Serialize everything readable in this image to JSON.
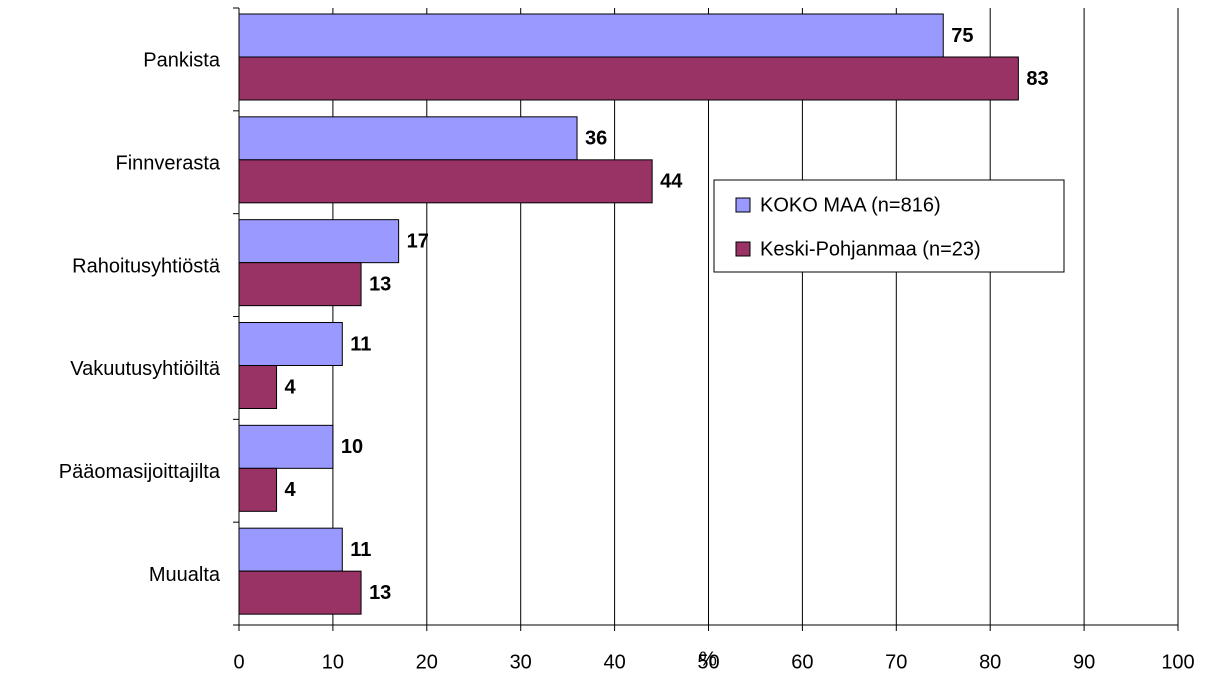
{
  "chart_data": {
    "type": "bar",
    "orientation": "horizontal",
    "categories": [
      "Pankista",
      "Finnverasta",
      "Rahoitusyhtiöstä",
      "Vakuutusyhtiöiltä",
      "Pääomasijoittajilta",
      "Muualta"
    ],
    "series": [
      {
        "name": "KOKO MAA (n=816)",
        "color": "#9999ff",
        "values": [
          75,
          36,
          17,
          11,
          10,
          11
        ]
      },
      {
        "name": "Keski-Pohjanmaa (n=23)",
        "color": "#993366",
        "values": [
          83,
          44,
          13,
          4,
          4,
          13
        ]
      }
    ],
    "x_label": "%",
    "xlim": [
      0,
      100
    ],
    "xticks": [
      0,
      10,
      20,
      30,
      40,
      50,
      60,
      70,
      80,
      90,
      100
    ],
    "grid": true,
    "legend": "right"
  }
}
